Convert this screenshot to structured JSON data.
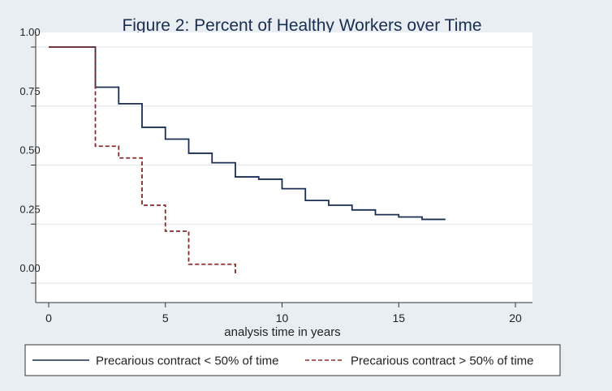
{
  "chart_data": {
    "type": "line",
    "step": true,
    "title": "Figure 2: Percent of Healthy Workers over Time",
    "xlabel": "analysis time in years",
    "ylabel": "",
    "xlim": [
      0,
      20
    ],
    "ylim": [
      -0.07,
      1.07
    ],
    "xticks": [
      0,
      5,
      10,
      15,
      20
    ],
    "xtick_labels": [
      "0",
      "5",
      "10",
      "15",
      "20"
    ],
    "yticks": [
      0,
      0.25,
      0.5,
      0.75,
      1
    ],
    "ytick_labels": [
      "0.00",
      "0.25",
      "0.50",
      "0.75",
      "1.00"
    ],
    "grid": true,
    "legend_position": "bottom",
    "series": [
      {
        "name": "Precarious contract < 50% of time",
        "color": "#1a2e52",
        "dash": "solid",
        "x": [
          0,
          2,
          3,
          4,
          5,
          6,
          7,
          8,
          9,
          10,
          11,
          12,
          13,
          14,
          15,
          16,
          17
        ],
        "y": [
          1.0,
          0.83,
          0.76,
          0.66,
          0.61,
          0.55,
          0.51,
          0.45,
          0.44,
          0.4,
          0.35,
          0.33,
          0.31,
          0.29,
          0.28,
          0.27,
          0.27
        ]
      },
      {
        "name": "Precarious contract > 50% of time",
        "color": "#8b2a2a",
        "dash": "dashed",
        "x": [
          0,
          2,
          3,
          4,
          5,
          6,
          8
        ],
        "y": [
          1.0,
          0.58,
          0.53,
          0.33,
          0.22,
          0.08,
          0.04
        ]
      }
    ]
  }
}
